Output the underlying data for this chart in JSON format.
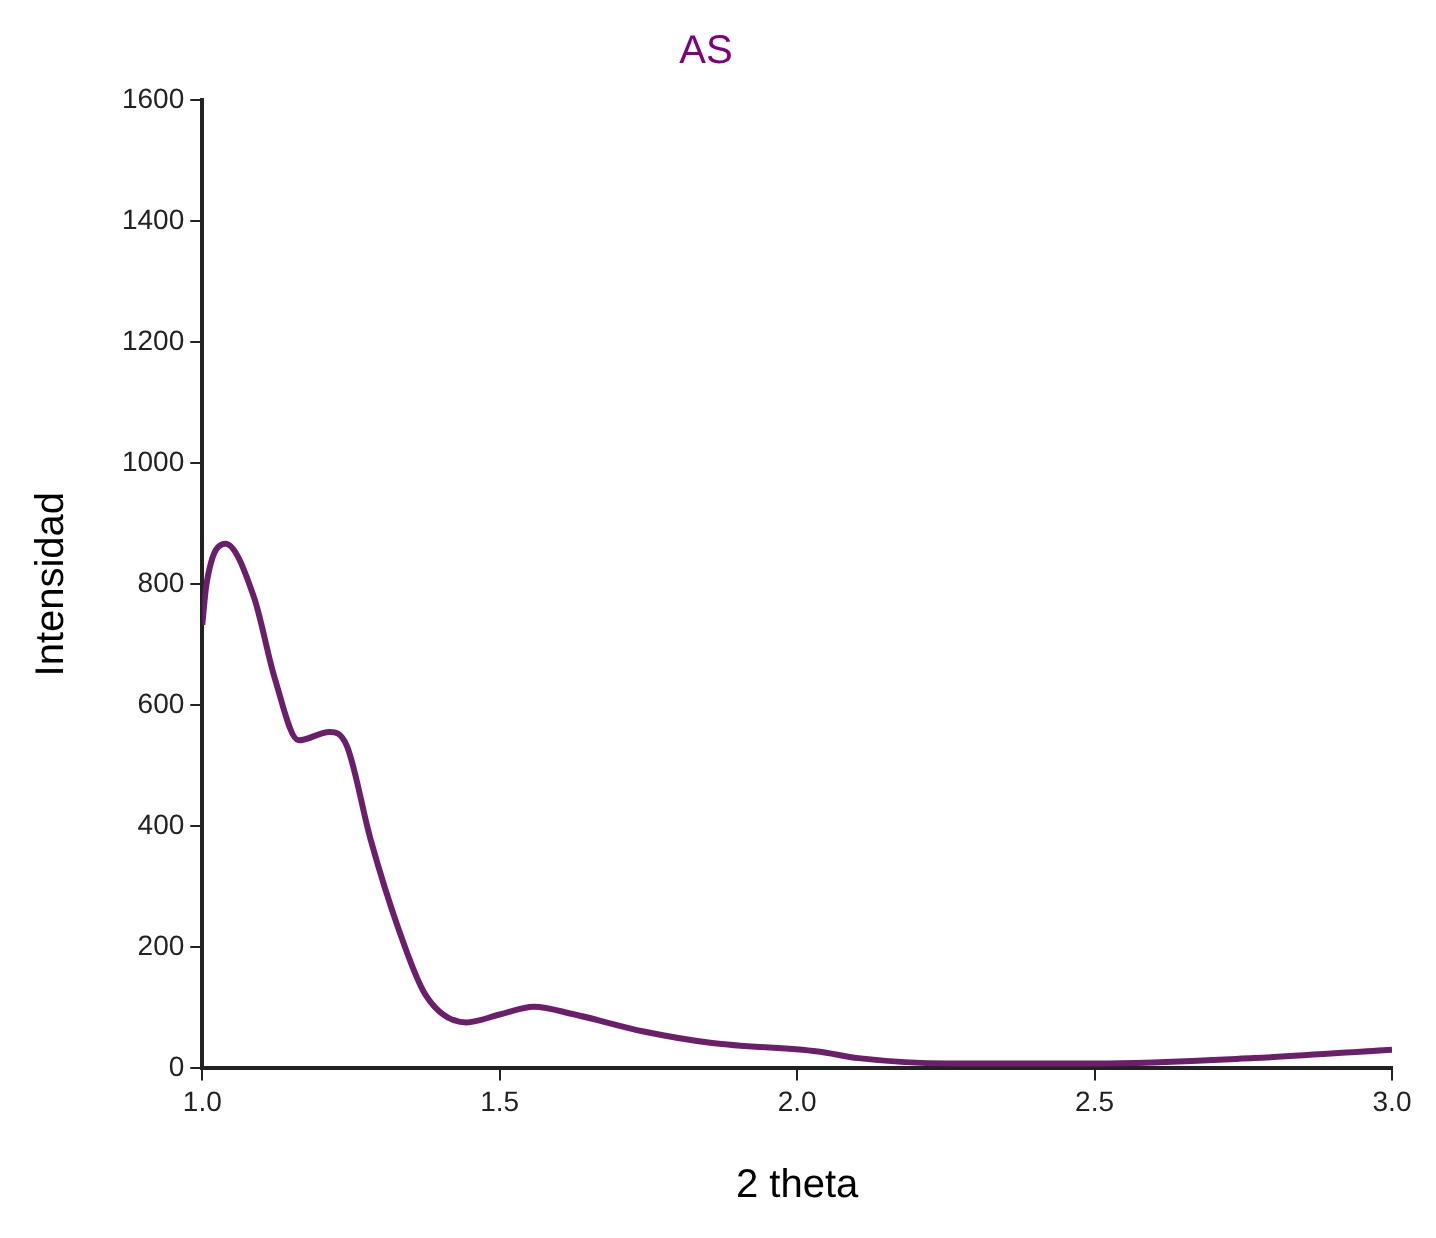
{
  "chart_data": {
    "type": "line",
    "title": "AS",
    "xlabel": "2 theta",
    "ylabel": "Intensidad",
    "x": [
      1.0,
      1.007,
      1.039,
      1.087,
      1.122,
      1.162,
      1.214,
      1.243,
      1.283,
      1.329,
      1.375,
      1.444,
      1.5,
      1.557,
      1.626,
      1.742,
      1.857,
      2.035,
      2.103,
      2.253,
      2.5,
      2.768,
      3.0
    ],
    "series": [
      {
        "color": "#6b1f6b",
        "values": [
          733,
          800,
          867,
          778,
          644,
          542,
          556,
          533,
          378,
          233,
          122,
          76,
          89,
          102,
          89,
          61,
          42,
          28,
          17,
          8,
          8,
          17,
          31
        ]
      }
    ],
    "xlim": [
      1.0,
      3.0
    ],
    "xticks": [
      {
        "value": 1,
        "label": "1.0"
      },
      1.5,
      {
        "value": 2,
        "label": "2.0"
      },
      2.5,
      {
        "value": 3,
        "label": "3.0"
      }
    ],
    "ylim": [
      0,
      1600
    ],
    "yticks": [
      0,
      200,
      400,
      600,
      800,
      1000,
      1200,
      1400,
      1600
    ],
    "grid": false,
    "legend": false,
    "marker": "none",
    "line_style": "solid"
  }
}
